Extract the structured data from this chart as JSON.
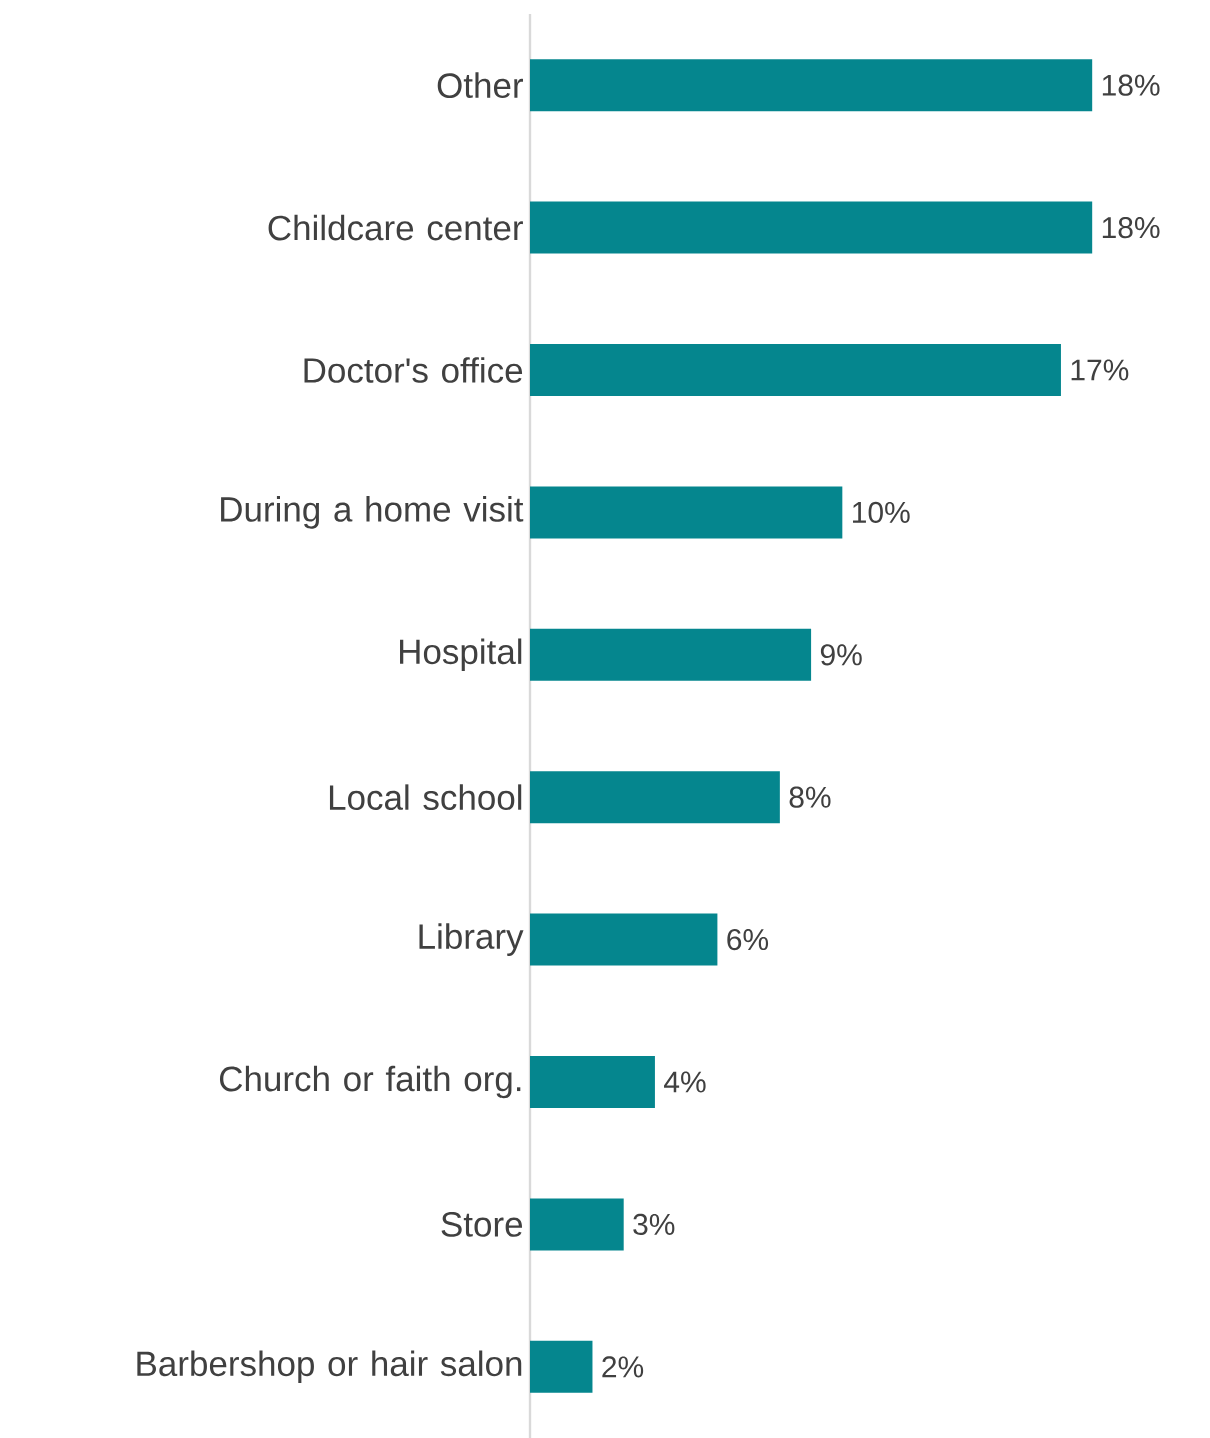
{
  "chart_data": {
    "type": "bar",
    "orientation": "horizontal",
    "categories": [
      "Other",
      "Childcare center",
      "Doctor's office",
      "During a home visit",
      "Hospital",
      "Local school",
      "Library",
      "Church or faith org.",
      "Store",
      "Barbershop or hair salon"
    ],
    "values": [
      18,
      18,
      17,
      10,
      9,
      8,
      6,
      4,
      3,
      2
    ],
    "value_labels": [
      "18%",
      "18%",
      "17%",
      "10%",
      "9%",
      "8%",
      "6%",
      "4%",
      "3%",
      "2%"
    ],
    "color": "#05868e"
  }
}
